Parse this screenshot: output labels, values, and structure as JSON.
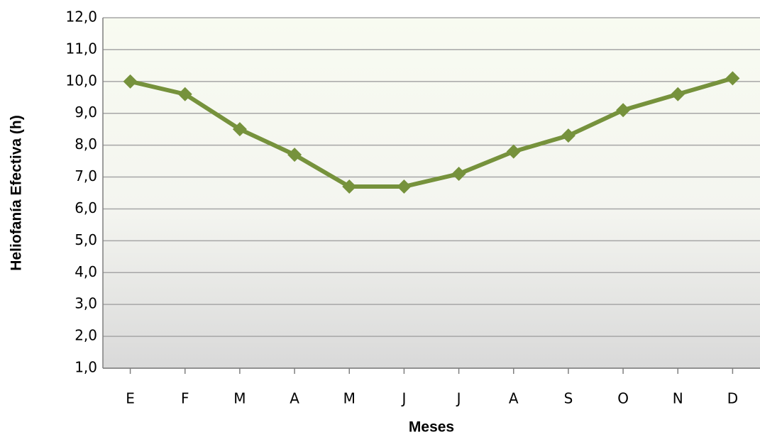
{
  "chart_data": {
    "type": "line",
    "x_label": "Meses",
    "y_label": "Heliofanía Efectiva (h)",
    "categories": [
      "E",
      "F",
      "M",
      "A",
      "M",
      "J",
      "J",
      "A",
      "S",
      "O",
      "N",
      "D"
    ],
    "series": [
      {
        "name": "Heliofanía Efectiva",
        "color": "#76923c",
        "values": [
          10.0,
          9.6,
          8.5,
          7.7,
          6.7,
          6.7,
          7.1,
          7.8,
          8.3,
          9.1,
          9.6,
          10.1
        ]
      }
    ],
    "ylim": [
      1,
      12
    ],
    "yticks": [
      {
        "value": 1,
        "label": "1,0"
      },
      {
        "value": 2,
        "label": "2,0"
      },
      {
        "value": 3,
        "label": "3,0"
      },
      {
        "value": 4,
        "label": "4,0"
      },
      {
        "value": 5,
        "label": "5,0"
      },
      {
        "value": 6,
        "label": "6,0"
      },
      {
        "value": 7,
        "label": "7,0"
      },
      {
        "value": 8,
        "label": "8,0"
      },
      {
        "value": 9,
        "label": "9,0"
      },
      {
        "value": 10,
        "label": "10,0"
      },
      {
        "value": 11,
        "label": "11,0"
      },
      {
        "value": 12,
        "label": "12,0"
      }
    ],
    "grid": true
  }
}
